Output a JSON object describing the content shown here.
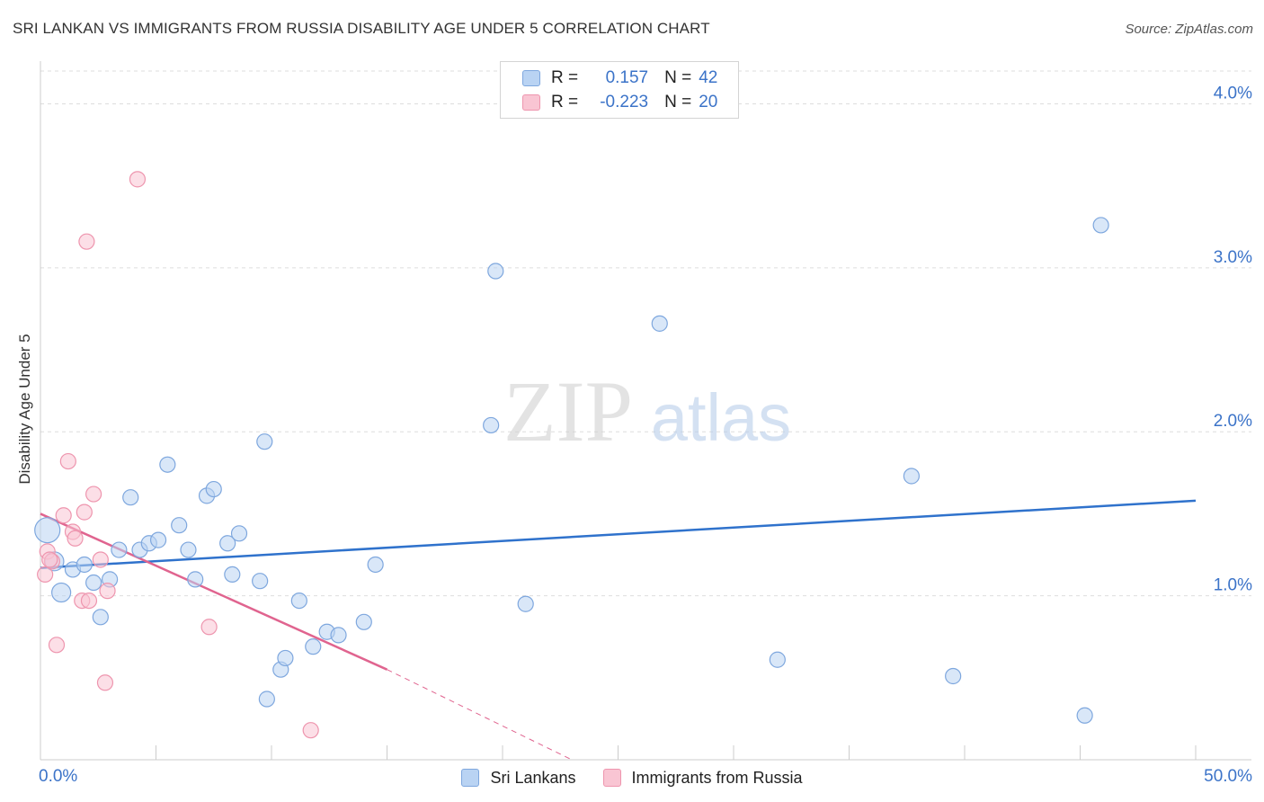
{
  "title": "SRI LANKAN VS IMMIGRANTS FROM RUSSIA DISABILITY AGE UNDER 5 CORRELATION CHART",
  "source": "Source: ZipAtlas.com",
  "watermark": {
    "zip": "ZIP",
    "atlas": "atlas"
  },
  "colors": {
    "blue_fill": "#b9d3f3",
    "blue_stroke": "#7ea7de",
    "blue_line": "#2f72cc",
    "pink_fill": "#f9c5d3",
    "pink_stroke": "#ee95ae",
    "pink_line": "#e0648f",
    "tick_text": "#3b73c8",
    "grid": "#dddddd"
  },
  "legend": {
    "rows": [
      {
        "r_label": "R =",
        "r_value": "0.157",
        "n_label": "N =",
        "n_value": "42"
      },
      {
        "r_label": "R =",
        "r_value": "-0.223",
        "n_label": "N =",
        "n_value": "20"
      }
    ]
  },
  "chart_data": {
    "type": "scatter",
    "title": "SRI LANKAN VS IMMIGRANTS FROM RUSSIA DISABILITY AGE UNDER 5 CORRELATION CHART",
    "xlabel": "",
    "ylabel": "Disability Age Under 5",
    "xlim": [
      0,
      50
    ],
    "ylim": [
      0,
      4.2
    ],
    "x_tick_labels": [
      "0.0%",
      "50.0%"
    ],
    "y_ticks": [
      1.0,
      2.0,
      3.0,
      4.0
    ],
    "y_tick_labels": [
      "1.0%",
      "2.0%",
      "3.0%",
      "4.0%"
    ],
    "series": [
      {
        "name": "Sri Lankans",
        "color": "#b9d3f3",
        "points": [
          [
            0.3,
            1.4
          ],
          [
            0.6,
            1.21
          ],
          [
            0.9,
            1.02
          ],
          [
            1.4,
            1.16
          ],
          [
            1.9,
            1.19
          ],
          [
            2.3,
            1.08
          ],
          [
            2.6,
            0.87
          ],
          [
            3.0,
            1.1
          ],
          [
            3.4,
            1.28
          ],
          [
            3.9,
            1.6
          ],
          [
            4.3,
            1.28
          ],
          [
            4.7,
            1.32
          ],
          [
            5.1,
            1.34
          ],
          [
            5.5,
            1.8
          ],
          [
            6.0,
            1.43
          ],
          [
            6.4,
            1.28
          ],
          [
            6.7,
            1.1
          ],
          [
            7.2,
            1.61
          ],
          [
            7.5,
            1.65
          ],
          [
            8.1,
            1.32
          ],
          [
            8.3,
            1.13
          ],
          [
            8.6,
            1.38
          ],
          [
            9.5,
            1.09
          ],
          [
            9.7,
            1.94
          ],
          [
            9.8,
            0.37
          ],
          [
            10.4,
            0.55
          ],
          [
            10.6,
            0.62
          ],
          [
            11.2,
            0.97
          ],
          [
            11.8,
            0.69
          ],
          [
            12.4,
            0.78
          ],
          [
            12.9,
            0.76
          ],
          [
            14.0,
            0.84
          ],
          [
            14.5,
            1.19
          ],
          [
            19.5,
            2.04
          ],
          [
            19.7,
            2.98
          ],
          [
            21.0,
            0.95
          ],
          [
            26.8,
            2.66
          ],
          [
            31.9,
            0.61
          ],
          [
            37.7,
            1.73
          ],
          [
            39.5,
            0.51
          ],
          [
            45.2,
            0.27
          ],
          [
            45.9,
            3.26
          ]
        ]
      },
      {
        "name": "Immigrants from Russia",
        "color": "#f9c5d3",
        "points": [
          [
            0.2,
            1.13
          ],
          [
            0.3,
            1.27
          ],
          [
            0.5,
            1.21
          ],
          [
            0.7,
            0.7
          ],
          [
            1.0,
            1.49
          ],
          [
            1.2,
            1.82
          ],
          [
            1.4,
            1.39
          ],
          [
            1.5,
            1.35
          ],
          [
            1.8,
            0.97
          ],
          [
            1.9,
            1.51
          ],
          [
            2.0,
            3.16
          ],
          [
            2.1,
            0.97
          ],
          [
            2.3,
            1.62
          ],
          [
            2.6,
            1.22
          ],
          [
            2.8,
            0.47
          ],
          [
            2.9,
            1.03
          ],
          [
            4.2,
            3.54
          ],
          [
            7.3,
            0.81
          ],
          [
            11.7,
            0.18
          ],
          [
            0.4,
            1.22
          ]
        ]
      }
    ],
    "trendlines": [
      {
        "series": "Sri Lankans",
        "x": [
          0,
          50
        ],
        "y": [
          1.17,
          1.58
        ],
        "style": "solid"
      },
      {
        "series": "Immigrants from Russia",
        "x": [
          0,
          15
        ],
        "y": [
          1.5,
          0.55
        ],
        "style": "solid"
      },
      {
        "series": "Immigrants from Russia",
        "x": [
          15,
          23
        ],
        "y": [
          0.55,
          0.0
        ],
        "style": "dashed"
      }
    ]
  },
  "bottom_legend": [
    {
      "label": "Sri Lankans"
    },
    {
      "label": "Immigrants from Russia"
    }
  ]
}
